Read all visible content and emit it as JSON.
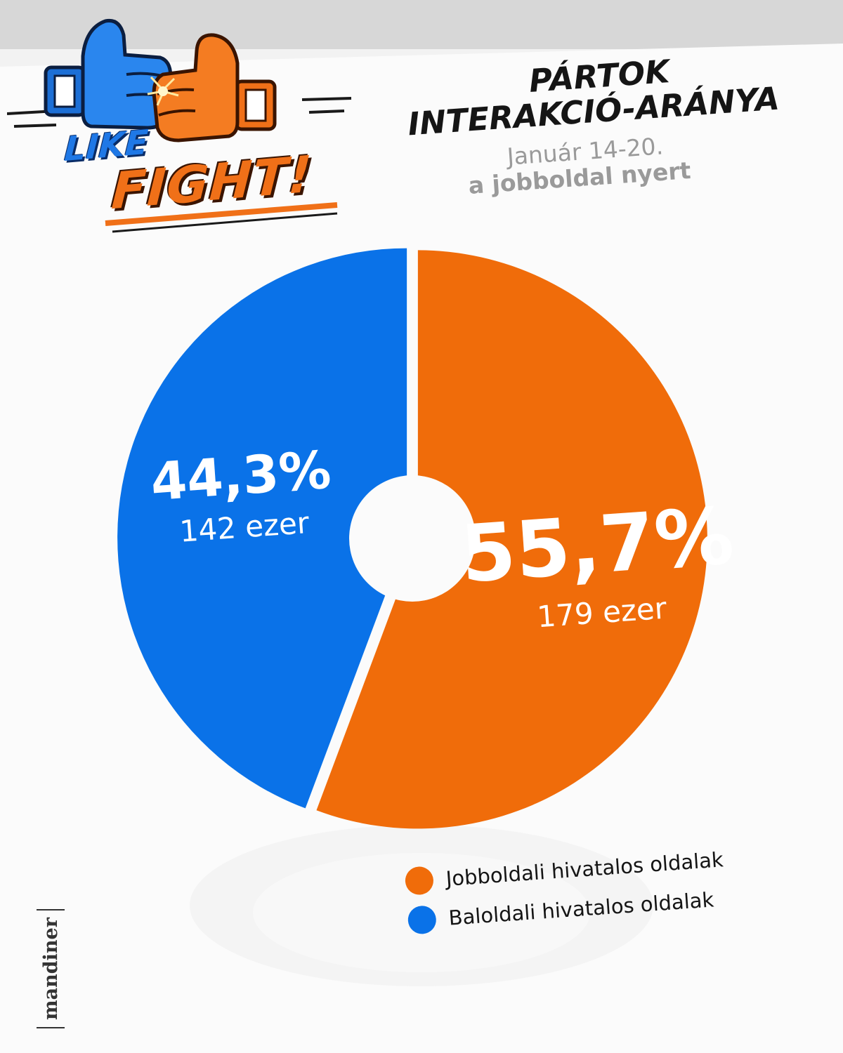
{
  "brand": {
    "logo_line1": "LIKE",
    "logo_line2": "FIGHT!",
    "publisher": "mandiner"
  },
  "colors": {
    "orange": "#f06c0a",
    "blue": "#0a72e8",
    "logo_blue": "#1f78e6",
    "logo_orange": "#f07018"
  },
  "header": {
    "title_line1": "PÁRTOK",
    "title_line2": "INTERAKCIÓ-ARÁNYA",
    "date": "Január 14-20.",
    "verdict": "a jobboldal nyert"
  },
  "chart_data": {
    "type": "pie",
    "style": "donut",
    "slices": [
      {
        "label": "Jobboldali hivatalos oldalak",
        "value": 55.7,
        "display": "55,7%",
        "count": "179 ezer",
        "color": "#f06c0a"
      },
      {
        "label": "Baloldali hivatalos oldalak",
        "value": 44.3,
        "display": "44,3%",
        "count": "142 ezer",
        "color": "#0a72e8"
      }
    ],
    "start_angle": "top",
    "direction": "clockwise",
    "legend_position": "bottom-right"
  },
  "legend": {
    "items": [
      {
        "label": "Jobboldali hivatalos oldalak",
        "color": "#f06c0a"
      },
      {
        "label": "Baloldali hivatalos oldalak",
        "color": "#0a72e8"
      }
    ]
  }
}
